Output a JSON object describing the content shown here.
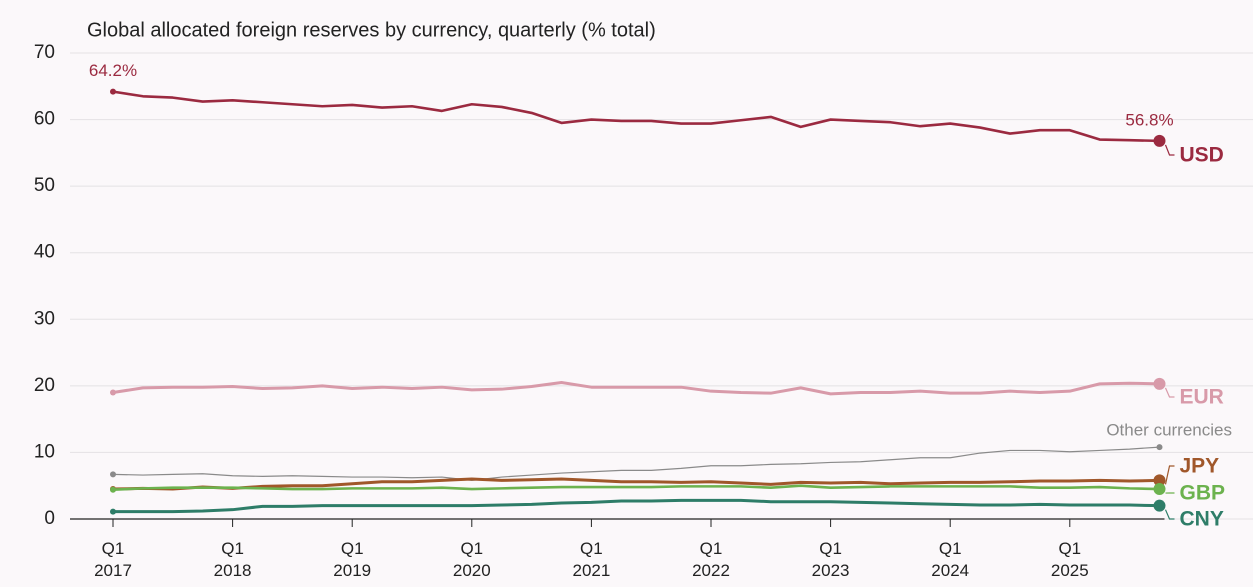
{
  "chart_data": {
    "type": "line",
    "title": "Global allocated foreign reserves by currency, quarterly (% total)",
    "categories": [
      "Q1 2017",
      null,
      null,
      null,
      "Q1 2018",
      null,
      null,
      null,
      "Q1 2019",
      null,
      null,
      null,
      "Q1 2020",
      null,
      null,
      null,
      "Q1 2021",
      null,
      null,
      null,
      "Q1 2022",
      null,
      null,
      null,
      "Q1 2023",
      null,
      null,
      null,
      "Q1 2024",
      null,
      null,
      null,
      "Q1 2025",
      null,
      null,
      null
    ],
    "ylim": [
      0,
      70
    ],
    "yticks": [
      0,
      10,
      20,
      30,
      40,
      50,
      60,
      70
    ],
    "grid": true,
    "series": [
      {
        "name": "USD",
        "color": "#9b2a40",
        "values": [
          64.2,
          63.5,
          63.3,
          62.7,
          62.9,
          62.6,
          62.3,
          62.0,
          62.2,
          61.8,
          62.0,
          61.3,
          62.3,
          61.9,
          61.0,
          59.5,
          60.0,
          59.8,
          59.8,
          59.4,
          59.4,
          59.9,
          60.4,
          58.9,
          60.0,
          59.8,
          59.6,
          59.0,
          59.4,
          58.8,
          57.9,
          58.4,
          58.4,
          57.0,
          56.9,
          56.8
        ],
        "value_labels": [
          "64.2%",
          null,
          null,
          null,
          null,
          null,
          null,
          null,
          null,
          null,
          null,
          null,
          null,
          null,
          null,
          null,
          null,
          null,
          null,
          null,
          null,
          null,
          null,
          null,
          null,
          null,
          null,
          null,
          null,
          null,
          null,
          null,
          null,
          null,
          null,
          "56.8%"
        ]
      },
      {
        "name": "EUR",
        "color": "#d89aa9",
        "values": [
          19.0,
          19.7,
          19.8,
          19.8,
          19.9,
          19.6,
          19.7,
          20.0,
          19.6,
          19.8,
          19.6,
          19.8,
          19.4,
          19.5,
          19.9,
          20.5,
          19.8,
          19.8,
          19.8,
          19.8,
          19.2,
          19.0,
          18.9,
          19.7,
          18.8,
          19.0,
          19.0,
          19.2,
          18.9,
          18.9,
          19.2,
          19.0,
          19.2,
          20.3,
          20.4,
          20.3
        ]
      },
      {
        "name": "Other currencies",
        "color": "#8a8a8a",
        "values": [
          6.7,
          6.6,
          6.7,
          6.8,
          6.5,
          6.4,
          6.5,
          6.4,
          6.3,
          6.3,
          6.2,
          6.3,
          5.8,
          6.3,
          6.6,
          6.9,
          7.1,
          7.3,
          7.3,
          7.6,
          8.0,
          8.0,
          8.2,
          8.3,
          8.5,
          8.6,
          8.9,
          9.2,
          9.2,
          9.9,
          10.3,
          10.3,
          10.1,
          10.3,
          10.5,
          10.8
        ]
      },
      {
        "name": "JPY",
        "color": "#a0572a",
        "values": [
          4.5,
          4.6,
          4.5,
          4.8,
          4.6,
          4.9,
          5.0,
          5.0,
          5.3,
          5.6,
          5.6,
          5.8,
          6.0,
          5.8,
          5.9,
          6.0,
          5.8,
          5.6,
          5.6,
          5.5,
          5.6,
          5.4,
          5.2,
          5.5,
          5.4,
          5.5,
          5.3,
          5.4,
          5.5,
          5.5,
          5.6,
          5.7,
          5.7,
          5.8,
          5.7,
          5.8
        ]
      },
      {
        "name": "GBP",
        "color": "#6cb24e",
        "values": [
          4.4,
          4.6,
          4.7,
          4.7,
          4.7,
          4.6,
          4.5,
          4.5,
          4.6,
          4.6,
          4.6,
          4.7,
          4.5,
          4.6,
          4.7,
          4.8,
          4.8,
          4.8,
          4.8,
          4.9,
          4.9,
          4.9,
          4.7,
          5.0,
          4.7,
          4.8,
          4.9,
          4.9,
          4.9,
          4.9,
          4.9,
          4.7,
          4.7,
          4.8,
          4.6,
          4.5
        ]
      },
      {
        "name": "CNY",
        "color": "#2e7d68",
        "values": [
          1.1,
          1.1,
          1.1,
          1.2,
          1.4,
          1.9,
          1.9,
          2.0,
          2.0,
          2.0,
          2.0,
          2.0,
          2.0,
          2.1,
          2.2,
          2.4,
          2.5,
          2.7,
          2.7,
          2.8,
          2.8,
          2.8,
          2.6,
          2.6,
          2.6,
          2.5,
          2.4,
          2.3,
          2.2,
          2.1,
          2.1,
          2.2,
          2.1,
          2.1,
          2.1,
          2.0
        ]
      }
    ]
  }
}
